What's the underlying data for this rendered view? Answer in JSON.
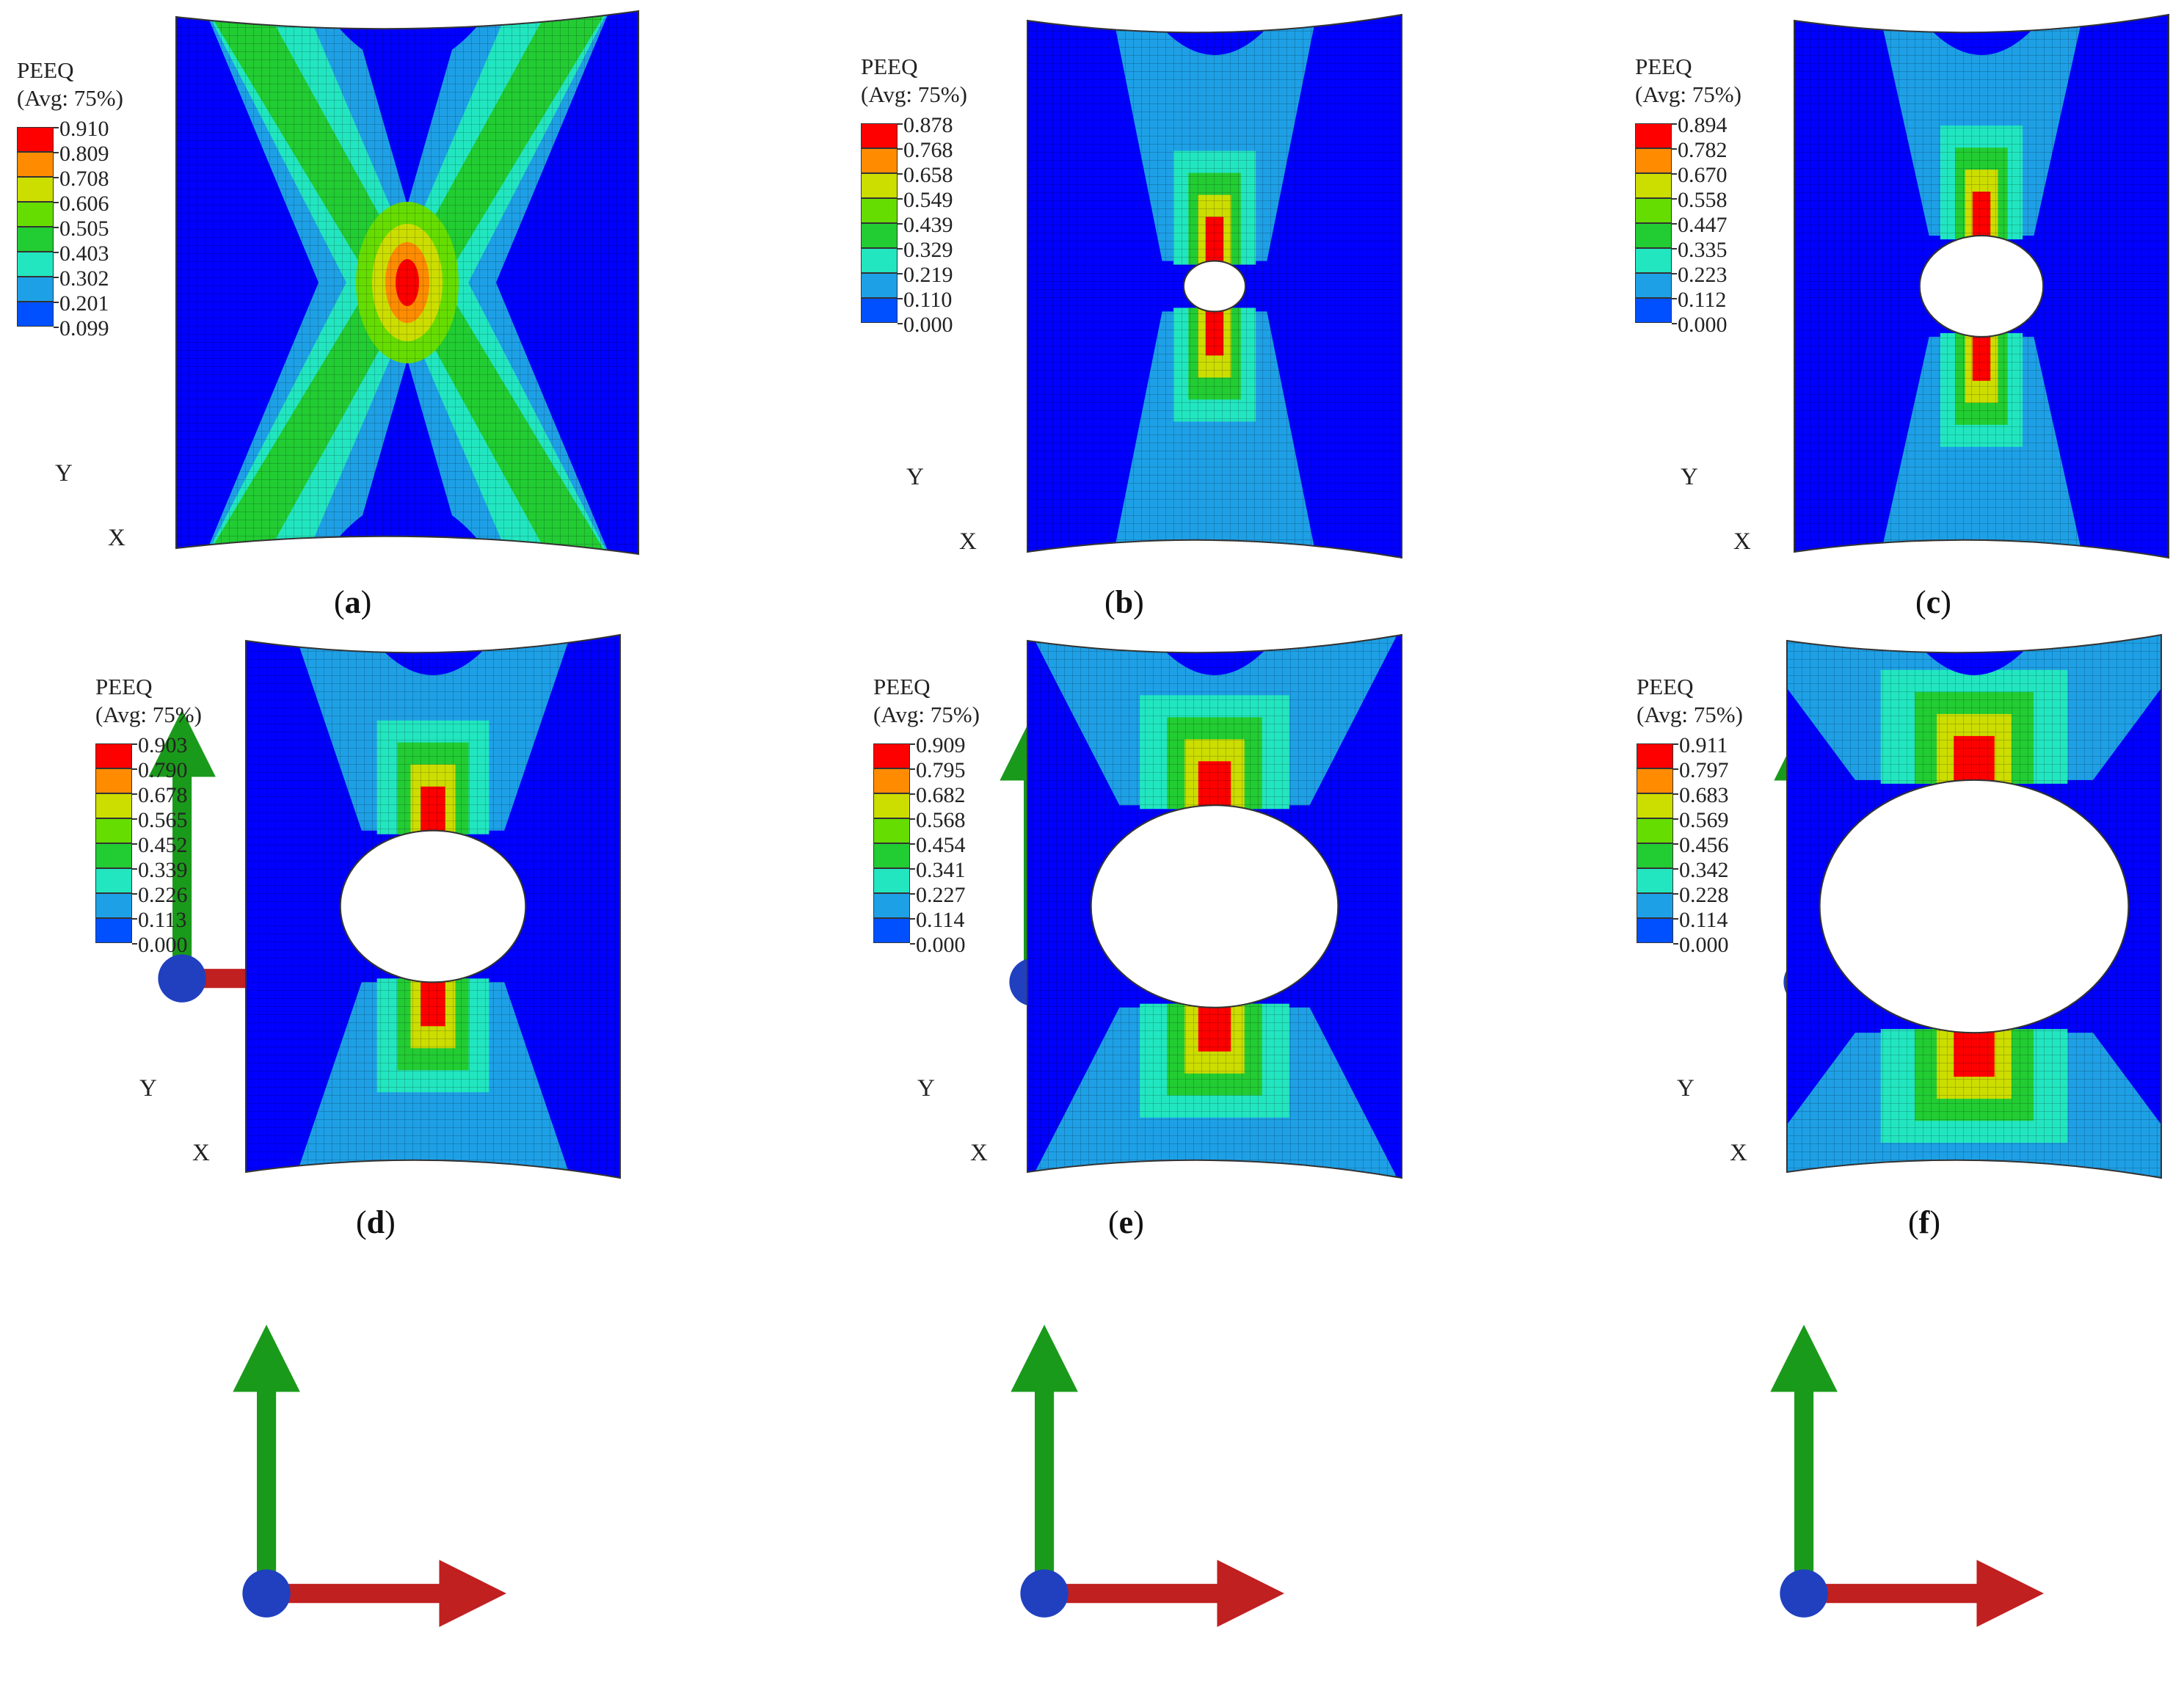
{
  "legend_title_line1": "PEEQ",
  "legend_title_line2": "(Avg: 75%)",
  "legend_colors": [
    "#ff0000",
    "#ff8c00",
    "#ccdd00",
    "#66dd00",
    "#22cc33",
    "#22e6c0",
    "#1ea0e6",
    "#0050ff",
    "#0000ff"
  ],
  "axis_y_label": "Y",
  "axis_x_label": "X",
  "panels": [
    {
      "id": "a",
      "caption": "a",
      "hole": 0,
      "legend_values": [
        "0.910",
        "0.809",
        "0.708",
        "0.606",
        "0.505",
        "0.403",
        "0.302",
        "0.201",
        "0.099"
      ]
    },
    {
      "id": "b",
      "caption": "b",
      "hole": 0.15,
      "legend_values": [
        "0.878",
        "0.768",
        "0.658",
        "0.549",
        "0.439",
        "0.329",
        "0.219",
        "0.110",
        "0.000"
      ]
    },
    {
      "id": "c",
      "caption": "c",
      "hole": 0.3,
      "legend_values": [
        "0.894",
        "0.782",
        "0.670",
        "0.558",
        "0.447",
        "0.335",
        "0.223",
        "0.112",
        "0.000"
      ]
    },
    {
      "id": "d",
      "caption": "d",
      "hole": 0.45,
      "legend_values": [
        "0.903",
        "0.790",
        "0.678",
        "0.565",
        "0.452",
        "0.339",
        "0.226",
        "0.113",
        "0.000"
      ]
    },
    {
      "id": "e",
      "caption": "e",
      "hole": 0.6,
      "legend_values": [
        "0.909",
        "0.795",
        "0.682",
        "0.568",
        "0.454",
        "0.341",
        "0.227",
        "0.114",
        "0.000"
      ]
    },
    {
      "id": "f",
      "caption": "f",
      "hole": 0.75,
      "legend_values": [
        "0.911",
        "0.797",
        "0.683",
        "0.569",
        "0.456",
        "0.342",
        "0.228",
        "0.114",
        "0.000"
      ]
    }
  ]
}
